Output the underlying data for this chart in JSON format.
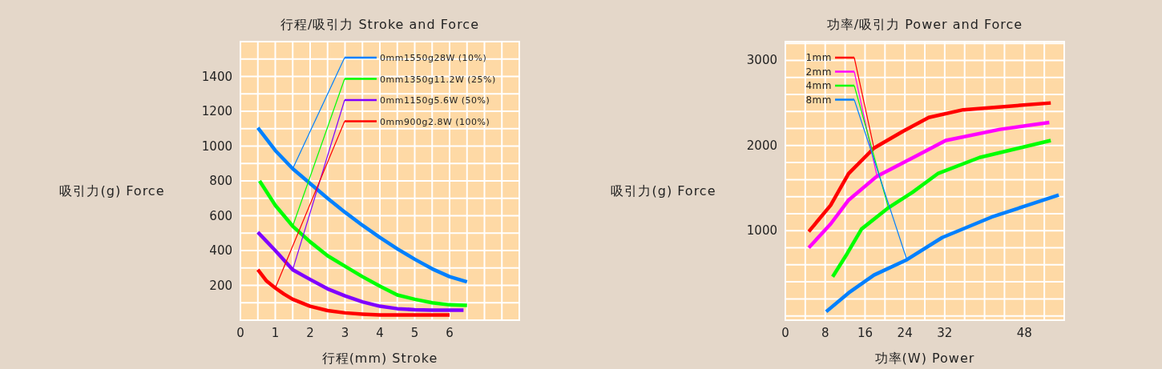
{
  "chart_data": [
    {
      "type": "line",
      "title": "行程/吸引力 Stroke and Force",
      "xlabel": "行程(mm) Stroke",
      "ylabel": "吸引力(g) Force",
      "xlim": [
        0,
        8
      ],
      "ylim": [
        0,
        1600
      ],
      "xticks": [
        0,
        1,
        2,
        3,
        4,
        5,
        6
      ],
      "yticks": [
        200,
        400,
        600,
        800,
        1000,
        1200,
        1400
      ],
      "grid": true,
      "legend": "top right",
      "series": [
        {
          "name": "0mm1550g28W (10%)",
          "color": "#0080ff",
          "x": [
            0.5,
            1,
            1.5,
            2,
            2.5,
            3,
            3.5,
            4,
            4.5,
            5,
            5.5,
            6,
            6.5
          ],
          "values": [
            1105,
            975,
            870,
            785,
            700,
            620,
            545,
            475,
            410,
            350,
            295,
            250,
            220
          ]
        },
        {
          "name": "0mm1350g11.2W (25%)",
          "color": "#00ff00",
          "x": [
            0.55,
            1,
            1.5,
            2,
            2.5,
            3,
            3.5,
            4,
            4.5,
            5,
            5.5,
            6,
            6.5
          ],
          "values": [
            800,
            660,
            540,
            450,
            370,
            310,
            250,
            195,
            145,
            120,
            100,
            88,
            85
          ]
        },
        {
          "name": "0mm1150g5.6W (50%)",
          "color": "#8000ff",
          "x": [
            0.5,
            1,
            1.5,
            2,
            2.5,
            3,
            3.5,
            4,
            4.5,
            5,
            5.5,
            6,
            6.4
          ],
          "values": [
            505,
            400,
            290,
            234,
            180,
            140,
            105,
            80,
            66,
            60,
            58,
            57,
            57
          ]
        },
        {
          "name": "0mm900g2.8W (100%)",
          "color": "#ff0000",
          "x": [
            0.5,
            0.75,
            1,
            1.25,
            1.5,
            2,
            2.5,
            3,
            3.5,
            4,
            5,
            6
          ],
          "values": [
            290,
            225,
            185,
            150,
            120,
            80,
            55,
            42,
            35,
            30,
            30,
            30
          ]
        }
      ]
    },
    {
      "type": "line",
      "title": "功率/吸引力 Power and Force",
      "xlabel": "功率(W) Power",
      "ylabel": "吸引力(g) Force",
      "xlim": [
        0,
        56
      ],
      "ylim": [
        -50,
        3220
      ],
      "xticks": [
        0,
        8,
        16,
        24,
        32,
        48
      ],
      "yticks": [
        1000,
        2000,
        3000
      ],
      "grid": true,
      "legend": "top left",
      "series": [
        {
          "name": "1mm",
          "color": "#ff0000",
          "x": [
            4.7,
            9.1,
            12.7,
            17.8,
            23.7,
            28.8,
            35.7,
            53.3
          ],
          "values": [
            990,
            1300,
            1670,
            1970,
            2170,
            2330,
            2420,
            2500
          ]
        },
        {
          "name": "2mm",
          "color": "#ff00ff",
          "x": [
            4.7,
            9.1,
            12.7,
            18.4,
            26.7,
            32.2,
            43.1,
            53
          ],
          "values": [
            800,
            1080,
            1360,
            1640,
            1890,
            2060,
            2190,
            2270
          ]
        },
        {
          "name": "4mm",
          "color": "#00ff00",
          "x": [
            9.5,
            12.4,
            15.3,
            20.7,
            25.5,
            30.6,
            39,
            53.3
          ],
          "values": [
            460,
            730,
            1020,
            1270,
            1450,
            1670,
            1860,
            2060
          ]
        },
        {
          "name": "8mm",
          "color": "#0080ff",
          "x": [
            8.2,
            12.7,
            17.8,
            24.4,
            31.5,
            41.4,
            54.9
          ],
          "values": [
            50,
            270,
            480,
            660,
            920,
            1160,
            1420
          ]
        }
      ]
    }
  ]
}
